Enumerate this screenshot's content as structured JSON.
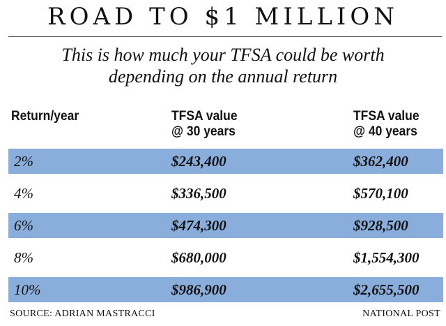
{
  "chart_data": {
    "type": "table",
    "title": "ROAD TO $1 MILLION",
    "subtitle": [
      "This is how much your TFSA could be worth",
      "depending on the annual return"
    ],
    "columns": [
      {
        "label": [
          "Return/year"
        ]
      },
      {
        "label": [
          "TFSA value",
          "@ 30 years"
        ]
      },
      {
        "label": [
          "TFSA value",
          "@ 40 years"
        ]
      }
    ],
    "rows": [
      {
        "return": "2%",
        "value_30": "$243,400",
        "value_40": "$362,400",
        "shaded": true
      },
      {
        "return": "4%",
        "value_30": "$336,500",
        "value_40": "$570,100",
        "shaded": false
      },
      {
        "return": "6%",
        "value_30": "$474,300",
        "value_40": "$928,500",
        "shaded": true
      },
      {
        "return": "8%",
        "value_30": "$680,000",
        "value_40": "$1,554,300",
        "shaded": false
      },
      {
        "return": "10%",
        "value_30": "$986,900",
        "value_40": "$2,655,500",
        "shaded": true
      }
    ],
    "source": "SOURCE:  ADRIAN MASTRACCI",
    "publisher": "NATIONAL POST",
    "colors": {
      "shaded_row": "#89aedb",
      "text": "#111111",
      "background": "#ffffff"
    }
  }
}
